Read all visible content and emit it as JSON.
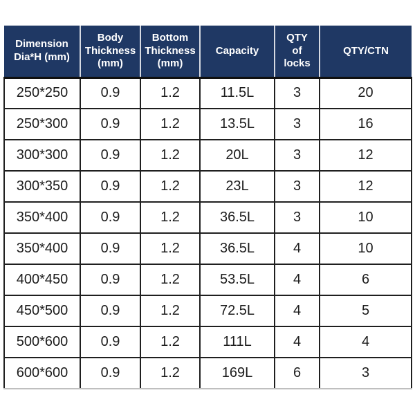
{
  "colors": {
    "header_bg": "#1f3864",
    "header_text": "#ffffff",
    "grid_line": "#1f1f1f",
    "header_separator": "#d6dae2",
    "body_text": "#1c1c1c",
    "page_bg": "#ffffff"
  },
  "table": {
    "columns": [
      {
        "label": "Dimension\nDia*H (mm)",
        "width": 110
      },
      {
        "label": "Body\nThickness\n(mm)",
        "width": 87
      },
      {
        "label": "Bottom\nThickness\n(mm)",
        "width": 86
      },
      {
        "label": "Capacity",
        "width": 108
      },
      {
        "label": "QTY\nof\nlocks",
        "width": 65
      },
      {
        "label": "QTY/CTN",
        "width": 133
      }
    ],
    "rows": [
      {
        "cells": [
          "250*250",
          "0.9",
          "1.2",
          "11.5L",
          "3",
          "20"
        ]
      },
      {
        "cells": [
          "250*300",
          "0.9",
          "1.2",
          "13.5L",
          "3",
          "16"
        ]
      },
      {
        "cells": [
          "300*300",
          "0.9",
          "1.2",
          "20L",
          "3",
          "12"
        ]
      },
      {
        "cells": [
          "300*350",
          "0.9",
          "1.2",
          "23L",
          "3",
          "12"
        ]
      },
      {
        "cells": [
          "350*400",
          "0.9",
          "1.2",
          "36.5L",
          "3",
          "10"
        ]
      },
      {
        "cells": [
          "350*400",
          "0.9",
          "1.2",
          "36.5L",
          "4",
          "10"
        ]
      },
      {
        "cells": [
          "400*450",
          "0.9",
          "1.2",
          "53.5L",
          "4",
          "6"
        ]
      },
      {
        "cells": [
          "450*500",
          "0.9",
          "1.2",
          "72.5L",
          "4",
          "5"
        ]
      },
      {
        "cells": [
          "500*600",
          "0.9",
          "1.2",
          "111L",
          "4",
          "4"
        ]
      },
      {
        "cells": [
          "600*600",
          "0.9",
          "1.2",
          "169L",
          "6",
          "3"
        ]
      }
    ]
  }
}
